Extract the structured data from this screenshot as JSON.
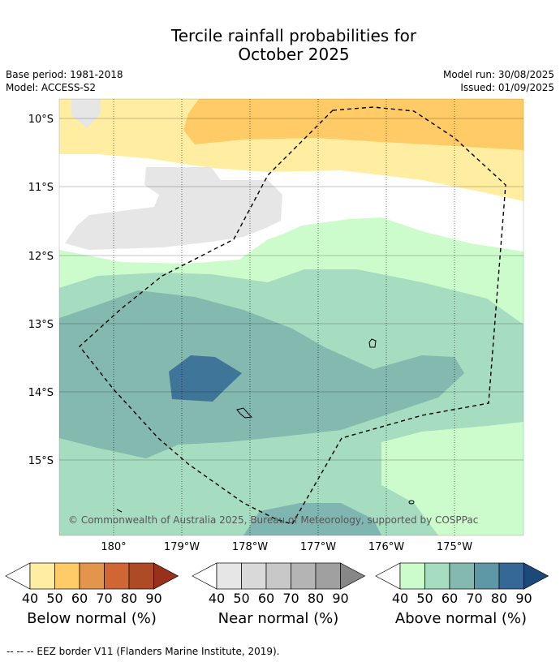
{
  "title_line1": "Tercile rainfall probabilities for",
  "title_line2": "October 2025",
  "meta": {
    "base_period": "Base period: 1981-2018",
    "model": "Model: ACCESS-S2",
    "model_run": "Model run: 30/08/2025",
    "issued": "Issued: 01/09/2025"
  },
  "map": {
    "lat_labels": [
      "10°S",
      "11°S",
      "12°S",
      "13°S",
      "14°S",
      "15°S"
    ],
    "lon_labels": [
      "180°",
      "179°W",
      "178°W",
      "177°W",
      "176°W",
      "175°W"
    ],
    "copyright": "© Commonwealth of Australia 2025, Bureau of Meteorology, supported by COSPPac"
  },
  "colorbars": [
    {
      "label": "Below normal (%)",
      "ticks": [
        "40",
        "50",
        "60",
        "70",
        "80",
        "90"
      ],
      "colors": [
        "#ffeea1",
        "#ffcb66",
        "#e3954c",
        "#cf6634",
        "#ae4a26",
        "#99301c"
      ]
    },
    {
      "label": "Near normal (%)",
      "ticks": [
        "40",
        "50",
        "60",
        "70",
        "80",
        "90"
      ],
      "colors": [
        "#e6e6e6",
        "#d9d9d9",
        "#c8c8c8",
        "#b4b4b4",
        "#a0a0a0",
        "#878787"
      ]
    },
    {
      "label": "Above normal (%)",
      "ticks": [
        "40",
        "50",
        "60",
        "70",
        "80",
        "90"
      ],
      "colors": [
        "#ccfccc",
        "#a6dcbf",
        "#83b9ae",
        "#5e98a6",
        "#356896",
        "#1b4a7a"
      ]
    }
  ],
  "footnote": "-- -- -- EEZ border V11 (Flanders Marine Institute, 2019)."
}
